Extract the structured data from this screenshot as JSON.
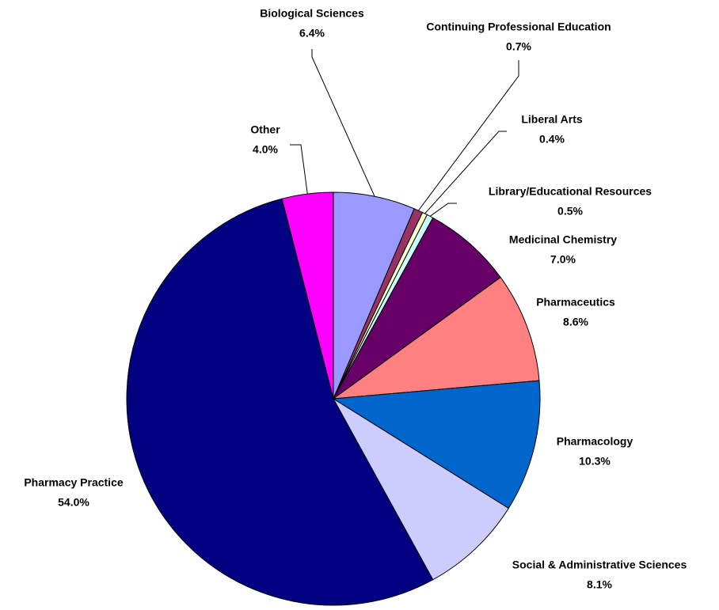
{
  "chart_data": {
    "type": "pie",
    "categories": [
      "Biological Sciences",
      "Continuing Professional Education",
      "Liberal Arts",
      "Library/Educational Resources",
      "Medicinal Chemistry",
      "Pharmaceutics",
      "Pharmacology",
      "Social & Administrative Sciences",
      "Pharmacy Practice",
      "Other"
    ],
    "values": [
      6.4,
      0.7,
      0.4,
      0.5,
      7.0,
      8.6,
      10.3,
      8.1,
      54.0,
      4.0
    ],
    "value_labels": [
      "6.4%",
      "0.7%",
      "0.4%",
      "0.5%",
      "7.0%",
      "8.6%",
      "10.3%",
      "8.1%",
      "54.0%",
      "4.0%"
    ],
    "colors": [
      "#9999ff",
      "#993366",
      "#ffffcc",
      "#ccffff",
      "#660066",
      "#ff8080",
      "#0066cc",
      "#ccccff",
      "#000080",
      "#ff00ff"
    ]
  }
}
